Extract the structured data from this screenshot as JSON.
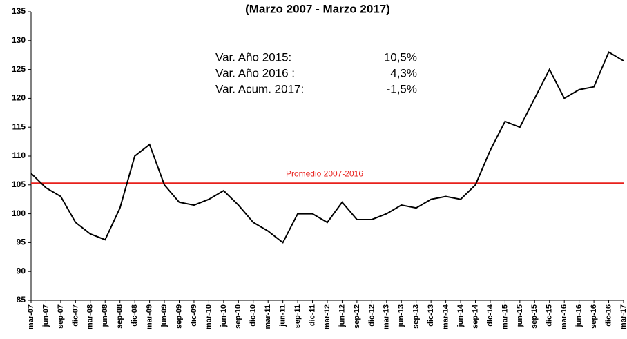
{
  "chart_data": {
    "type": "line",
    "title": "(Marzo 2007 -  Marzo 2017)",
    "categories": [
      "mar-07",
      "jun-07",
      "sep-07",
      "dic-07",
      "mar-08",
      "jun-08",
      "sep-08",
      "dic-08",
      "mar-09",
      "jun-09",
      "sep-09",
      "dic-09",
      "mar-10",
      "jun-10",
      "sep-10",
      "dic-10",
      "mar-11",
      "jun-11",
      "sep-11",
      "dic-11",
      "mar-12",
      "jun-12",
      "sep-12",
      "dic-12",
      "mar-13",
      "jun-13",
      "sep-13",
      "dic-13",
      "mar-14",
      "jun-14",
      "sep-14",
      "dic-14",
      "mar-15",
      "jun-15",
      "sep-15",
      "dic-15",
      "mar-16",
      "jun-16",
      "sep-16",
      "dic-16",
      "mar-17"
    ],
    "values": [
      107,
      104.5,
      103,
      98.5,
      96.5,
      95.5,
      101,
      110,
      112,
      105,
      102,
      101.5,
      102.5,
      104,
      101.5,
      98.5,
      97,
      95,
      100,
      100,
      98.5,
      102,
      99,
      99,
      100,
      101.5,
      101,
      102.5,
      103,
      102.5,
      105,
      111,
      116,
      115,
      120,
      125,
      120,
      121.5,
      122,
      128,
      126.5
    ],
    "color": "#000000",
    "ylim": [
      85,
      135
    ],
    "yticks": [
      85,
      90,
      95,
      100,
      105,
      110,
      115,
      120,
      125,
      130,
      135
    ],
    "reference_line": {
      "label": "Promedio 2007-2016",
      "value": 105.3,
      "color": "#e8201c"
    },
    "annotations": [
      {
        "label": "Var. Año 2015:",
        "value": "10,5%"
      },
      {
        "label": "Var. Año 2016 :",
        "value": "4,3%"
      },
      {
        "label": "Var. Acum. 2017:",
        "value": "-1,5%"
      }
    ]
  }
}
